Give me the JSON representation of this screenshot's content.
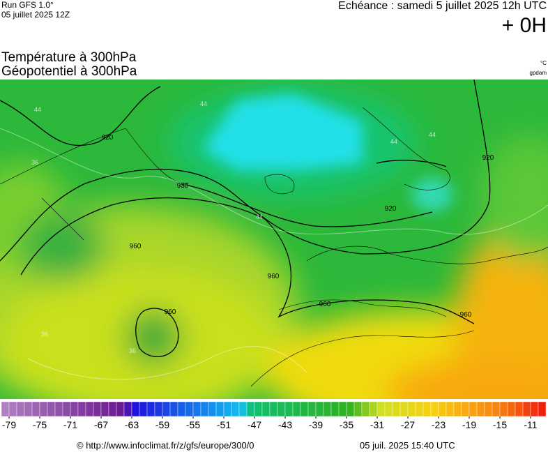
{
  "header": {
    "run": "Run GFS 1.0°",
    "run_date": "05 juillet 2025 12Z",
    "echeance": "Echéance : samedi 5 juillet 2025 12h UTC",
    "lead": "+ 0H",
    "title_1": "Température à 300hPa",
    "title_2": "Géopotentiel à 300hPa",
    "unit_temp": "°C",
    "unit_geo": "gpdam"
  },
  "map": {
    "contour_labels": [
      "920",
      "930",
      "920",
      "920",
      "960",
      "960",
      "960",
      "960",
      "960"
    ],
    "temp_labels": [
      "44",
      "44",
      "44",
      "44",
      "44",
      "36",
      "36",
      "36"
    ]
  },
  "colorbar": {
    "ticks": [
      -79,
      -75,
      -71,
      -67,
      -63,
      -59,
      -55,
      -51,
      -47,
      -43,
      -39,
      -35,
      -31,
      -27,
      -23,
      -19,
      -15,
      -11
    ]
  },
  "footer": {
    "url": "© http://www.infoclimat.fr/z/gfs/europe/300/0",
    "generated": "05 juil. 2025 15:40 UTC"
  }
}
